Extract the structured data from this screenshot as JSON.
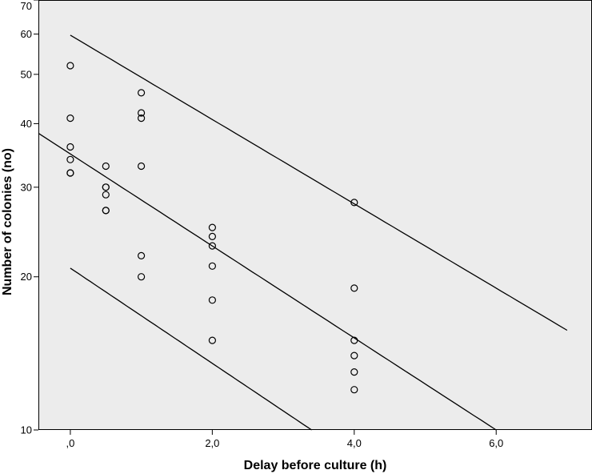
{
  "chart_data": {
    "type": "scatter",
    "xlabel": "Delay before culture (h)",
    "ylabel": "Number of colonies (no)",
    "xlim": [
      -0.45,
      7.35
    ],
    "ylim": [
      10,
      70
    ],
    "y_scale": "log",
    "grid": false,
    "background": "#ececec",
    "x_ticks": [
      {
        "value": 0,
        "label": ",0"
      },
      {
        "value": 2,
        "label": "2,0"
      },
      {
        "value": 4,
        "label": "4,0"
      },
      {
        "value": 6,
        "label": "6,0"
      }
    ],
    "y_ticks": [
      {
        "value": 10,
        "label": "10"
      },
      {
        "value": 20,
        "label": "20"
      },
      {
        "value": 30,
        "label": "30"
      },
      {
        "value": 40,
        "label": "40"
      },
      {
        "value": 50,
        "label": "50"
      },
      {
        "value": 60,
        "label": "60"
      },
      {
        "value": 70,
        "label": "70"
      }
    ],
    "points": [
      {
        "x": 0,
        "y": 52
      },
      {
        "x": 0,
        "y": 41
      },
      {
        "x": 0,
        "y": 36
      },
      {
        "x": 0,
        "y": 34
      },
      {
        "x": 0,
        "y": 32
      },
      {
        "x": 0,
        "y": 32
      },
      {
        "x": 0.5,
        "y": 33
      },
      {
        "x": 0.5,
        "y": 30
      },
      {
        "x": 0.5,
        "y": 30
      },
      {
        "x": 0.5,
        "y": 29
      },
      {
        "x": 0.5,
        "y": 27
      },
      {
        "x": 0.5,
        "y": 27
      },
      {
        "x": 1,
        "y": 46
      },
      {
        "x": 1,
        "y": 42
      },
      {
        "x": 1,
        "y": 41
      },
      {
        "x": 1,
        "y": 33
      },
      {
        "x": 1,
        "y": 22
      },
      {
        "x": 1,
        "y": 20
      },
      {
        "x": 2,
        "y": 25
      },
      {
        "x": 2,
        "y": 24
      },
      {
        "x": 2,
        "y": 23
      },
      {
        "x": 2,
        "y": 21
      },
      {
        "x": 2,
        "y": 18
      },
      {
        "x": 2,
        "y": 15
      },
      {
        "x": 4,
        "y": 28
      },
      {
        "x": 4,
        "y": 19
      },
      {
        "x": 4,
        "y": 15
      },
      {
        "x": 4,
        "y": 14
      },
      {
        "x": 4,
        "y": 13
      },
      {
        "x": 4,
        "y": 12
      }
    ],
    "lines": [
      {
        "points": [
          {
            "x": -0.45,
            "y": 38.3
          },
          {
            "x": 6.0,
            "y": 10
          }
        ]
      },
      {
        "points": [
          {
            "x": 0,
            "y": 59.7
          },
          {
            "x": 7.0,
            "y": 15.7
          }
        ]
      },
      {
        "points": [
          {
            "x": 0,
            "y": 20.8
          },
          {
            "x": 3.4,
            "y": 10
          }
        ]
      }
    ]
  }
}
